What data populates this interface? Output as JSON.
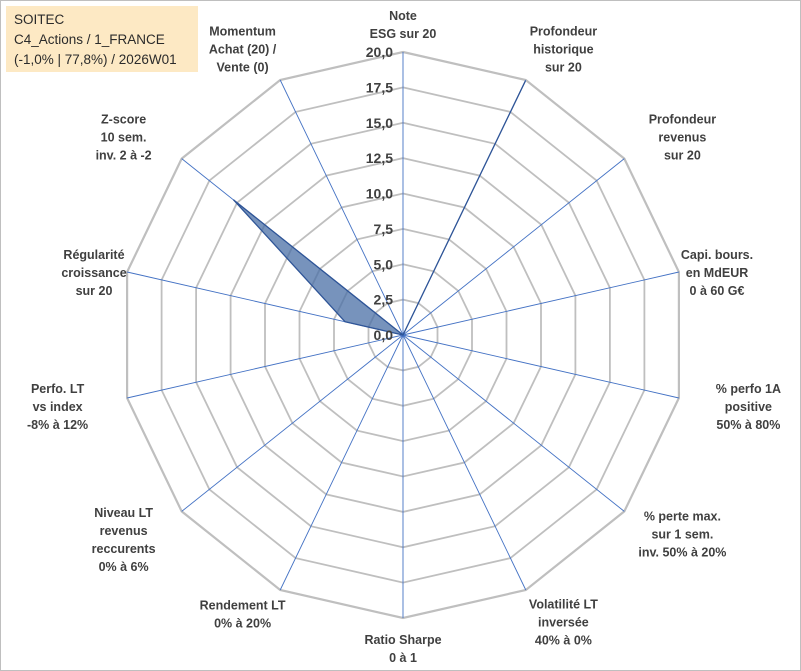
{
  "info": {
    "line1": "SOITEC",
    "line2": "C4_Actions / 1_FRANCE",
    "line3": "(-1,0% | 77,8%) / 2026W01"
  },
  "colors": {
    "grid": "#bfbfbf",
    "spoke": "#4472c4",
    "fill": "#4a6fa5",
    "stroke": "#2f5597",
    "info_bg": "#fde9c4"
  },
  "chart_data": {
    "type": "radar",
    "rmin": 0,
    "rmax": 20,
    "tick_values": [
      0,
      2.5,
      5,
      7.5,
      10,
      12.5,
      15,
      17.5,
      20
    ],
    "tick_labels": [
      "0,0",
      "2,5",
      "5,0",
      "7,5",
      "10,0",
      "12,5",
      "15,0",
      "17,5",
      "20,0"
    ],
    "axes": [
      {
        "label": [
          "Note",
          "ESG sur 20"
        ]
      },
      {
        "label": [
          "Profondeur",
          "historique",
          "sur 20"
        ]
      },
      {
        "label": [
          "Profondeur",
          "revenus",
          "sur 20"
        ]
      },
      {
        "label": [
          "Capi. bours.",
          "en MdEUR",
          "0 à 60 G€"
        ]
      },
      {
        "label": [
          "% perfo 1A",
          "positive",
          "50% à 80%"
        ]
      },
      {
        "label": [
          "% perte max.",
          "sur 1 sem.",
          "inv. 50% à 20%"
        ]
      },
      {
        "label": [
          "Volatilité LT",
          "inversée",
          "40% à 0%"
        ]
      },
      {
        "label": [
          "Ratio Sharpe",
          "0 à 1"
        ]
      },
      {
        "label": [
          "Rendement LT",
          "0% à 20%"
        ]
      },
      {
        "label": [
          "Niveau LT",
          "revenus",
          "reccurents",
          "0% à 6%"
        ]
      },
      {
        "label": [
          "Perfo. LT",
          "vs index",
          "-8% à 12%"
        ]
      },
      {
        "label": [
          "Régularité",
          "croissance",
          "sur 20"
        ]
      },
      {
        "label": [
          "Z-score",
          "10 sem.",
          "inv. 2 à -2"
        ]
      },
      {
        "label": [
          "Momentum",
          "Achat (20) /",
          "Vente (0)"
        ]
      }
    ],
    "series": [
      {
        "values": [
          0,
          19.9,
          0,
          0,
          0,
          0,
          0,
          0,
          0,
          0,
          0,
          4.2,
          15.3,
          0
        ]
      }
    ]
  }
}
